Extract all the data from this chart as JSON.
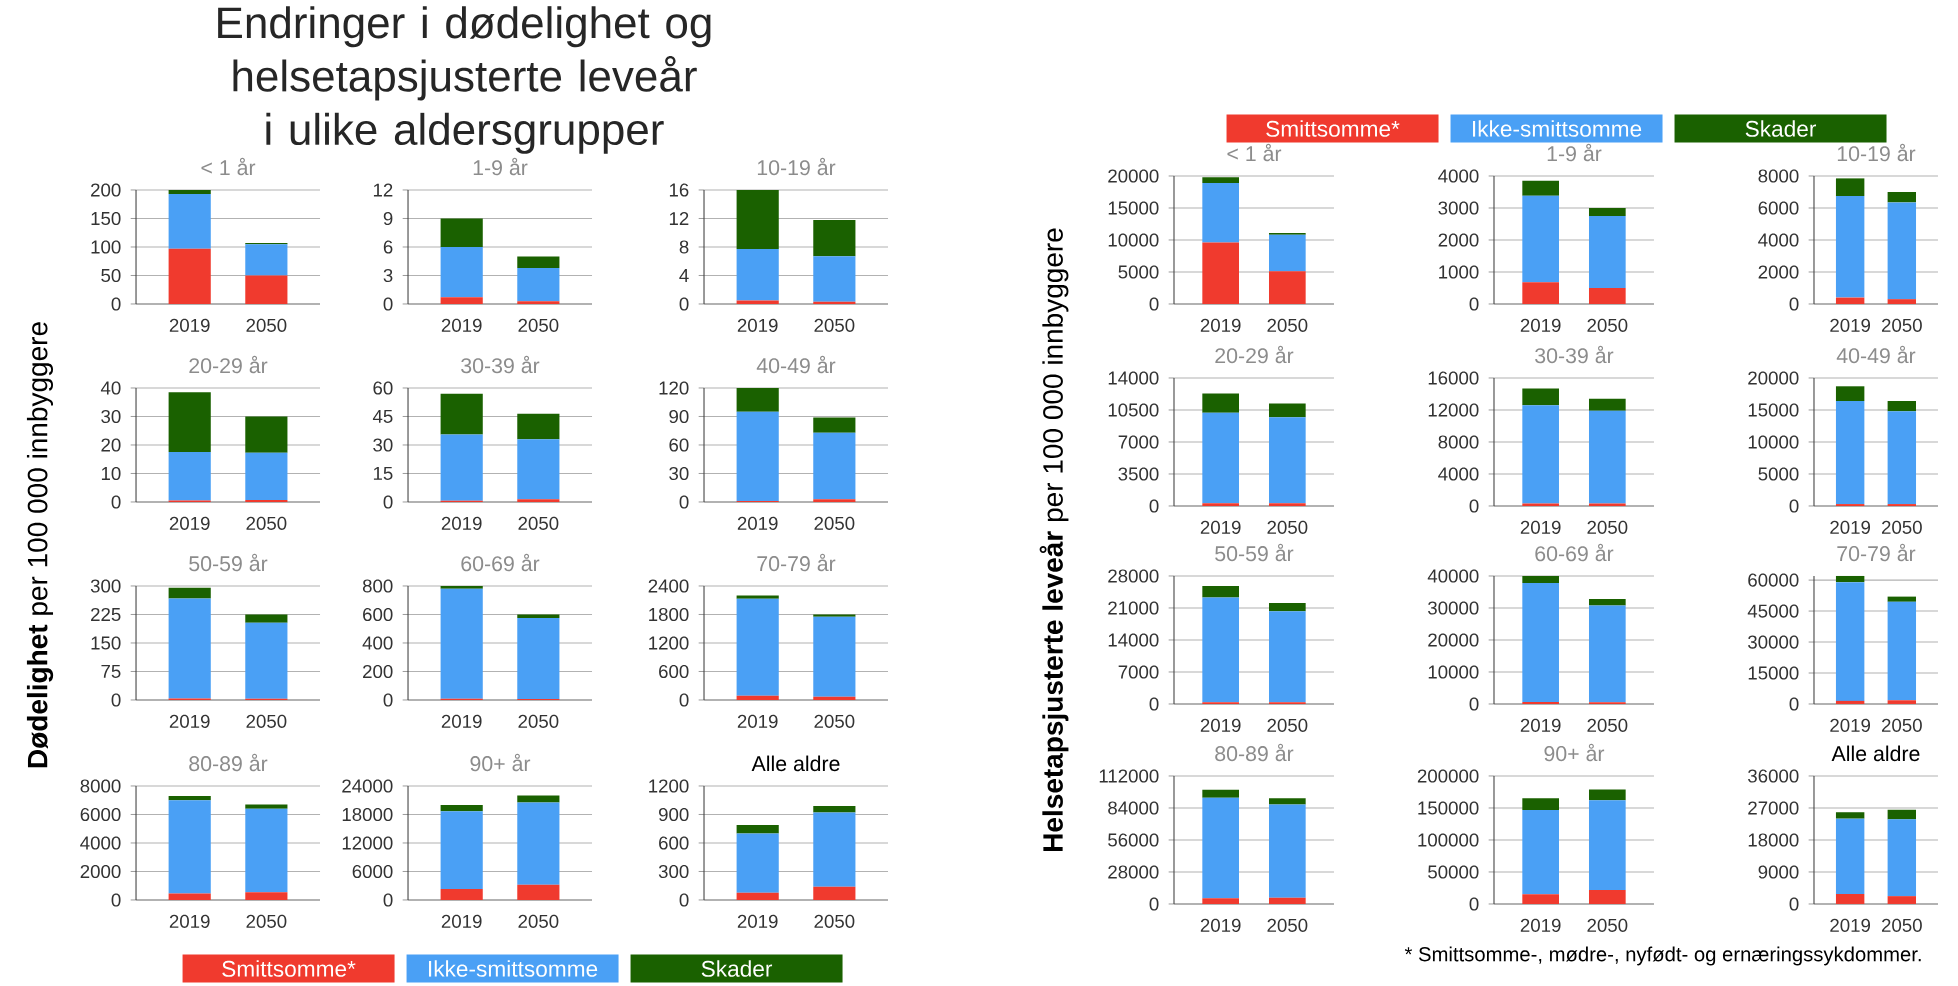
{
  "chart_data": [
    {
      "type": "other",
      "title": "Endringer i dødelighet og helsetapsjusterte leveår i ulike aldersgrupper",
      "annotations": [
        "* Smittsomme-, mødre-, nyfødt- og ernæringssykdommer."
      ]
    },
    {
      "type": "bar",
      "stacked": true,
      "grid": "y",
      "legend": "bottom",
      "ylabel": "**Dødelighet** per 100 000 innbyggere",
      "title": "< 1 år",
      "categories": [
        "2019",
        "2050"
      ],
      "ylim": [
        0,
        200
      ],
      "yticks": [
        0,
        50,
        100,
        150,
        200
      ],
      "series": [
        {
          "name": "Smittsomme*",
          "color": "#f03a2e",
          "values": [
            97,
            50
          ]
        },
        {
          "name": "Ikke-smittsomme",
          "color": "#4aa0f5",
          "values": [
            96,
            55
          ]
        },
        {
          "name": "Skader",
          "color": "#1a6100",
          "values": [
            7,
            2
          ]
        }
      ]
    },
    {
      "type": "bar",
      "stacked": true,
      "grid": "y",
      "title": "1-9 år",
      "categories": [
        "2019",
        "2050"
      ],
      "ylim": [
        0,
        12
      ],
      "yticks": [
        0,
        3,
        6,
        9,
        12
      ],
      "series": [
        {
          "color": "#f03a2e",
          "values": [
            0.7,
            0.3
          ]
        },
        {
          "color": "#4aa0f5",
          "values": [
            5.3,
            3.5
          ]
        },
        {
          "color": "#1a6100",
          "values": [
            3,
            1.2
          ]
        }
      ]
    },
    {
      "type": "bar",
      "stacked": true,
      "grid": "y",
      "title": "10-19 år",
      "categories": [
        "2019",
        "2050"
      ],
      "ylim": [
        0,
        16
      ],
      "yticks": [
        0,
        4,
        8,
        12,
        16
      ],
      "series": [
        {
          "color": "#f03a2e",
          "values": [
            0.5,
            0.3
          ]
        },
        {
          "color": "#4aa0f5",
          "values": [
            7.2,
            6.4
          ]
        },
        {
          "color": "#1a6100",
          "values": [
            8.3,
            5.1
          ]
        }
      ]
    },
    {
      "type": "bar",
      "stacked": true,
      "grid": "y",
      "title": "20-29 år",
      "categories": [
        "2019",
        "2050"
      ],
      "ylim": [
        0,
        40
      ],
      "yticks": [
        0,
        10,
        20,
        30,
        40
      ],
      "series": [
        {
          "color": "#f03a2e",
          "values": [
            0.5,
            0.7
          ]
        },
        {
          "color": "#4aa0f5",
          "values": [
            17,
            16.6
          ]
        },
        {
          "color": "#1a6100",
          "values": [
            21,
            12.7
          ]
        }
      ]
    },
    {
      "type": "bar",
      "stacked": true,
      "grid": "y",
      "title": "30-39 år",
      "categories": [
        "2019",
        "2050"
      ],
      "ylim": [
        0,
        60
      ],
      "yticks": [
        0,
        15,
        30,
        45,
        60
      ],
      "series": [
        {
          "color": "#f03a2e",
          "values": [
            0.7,
            1.5
          ]
        },
        {
          "color": "#4aa0f5",
          "values": [
            34.8,
            31.5
          ]
        },
        {
          "color": "#1a6100",
          "values": [
            21.5,
            13.5
          ]
        }
      ]
    },
    {
      "type": "bar",
      "stacked": true,
      "grid": "y",
      "title": "40-49 år",
      "categories": [
        "2019",
        "2050"
      ],
      "ylim": [
        0,
        120
      ],
      "yticks": [
        0,
        30,
        60,
        90,
        120
      ],
      "series": [
        {
          "color": "#f03a2e",
          "values": [
            1,
            3
          ]
        },
        {
          "color": "#4aa0f5",
          "values": [
            94,
            70
          ]
        },
        {
          "color": "#1a6100",
          "values": [
            25,
            16
          ]
        }
      ]
    },
    {
      "type": "bar",
      "stacked": true,
      "grid": "y",
      "title": "50-59 år",
      "categories": [
        "2019",
        "2050"
      ],
      "ylim": [
        0,
        300
      ],
      "yticks": [
        0,
        75,
        150,
        225,
        300
      ],
      "series": [
        {
          "color": "#f03a2e",
          "values": [
            4,
            3
          ]
        },
        {
          "color": "#4aa0f5",
          "values": [
            263,
            200
          ]
        },
        {
          "color": "#1a6100",
          "values": [
            28,
            22
          ]
        }
      ]
    },
    {
      "type": "bar",
      "stacked": true,
      "grid": "y",
      "title": "60-69 år",
      "categories": [
        "2019",
        "2050"
      ],
      "ylim": [
        0,
        800
      ],
      "yticks": [
        0,
        200,
        400,
        600,
        800
      ],
      "series": [
        {
          "color": "#f03a2e",
          "values": [
            8,
            6
          ]
        },
        {
          "color": "#4aa0f5",
          "values": [
            772,
            569
          ]
        },
        {
          "color": "#1a6100",
          "values": [
            20,
            25
          ]
        }
      ]
    },
    {
      "type": "bar",
      "stacked": true,
      "grid": "y",
      "title": "70-79 år",
      "categories": [
        "2019",
        "2050"
      ],
      "ylim": [
        0,
        2400
      ],
      "yticks": [
        0,
        600,
        1200,
        1800,
        2400
      ],
      "series": [
        {
          "color": "#f03a2e",
          "values": [
            90,
            70
          ]
        },
        {
          "color": "#4aa0f5",
          "values": [
            2040,
            1680
          ]
        },
        {
          "color": "#1a6100",
          "values": [
            70,
            50
          ]
        }
      ]
    },
    {
      "type": "bar",
      "stacked": true,
      "grid": "y",
      "title": "80-89 år",
      "categories": [
        "2019",
        "2050"
      ],
      "ylim": [
        0,
        8000
      ],
      "yticks": [
        0,
        2000,
        4000,
        6000,
        8000
      ],
      "series": [
        {
          "color": "#f03a2e",
          "values": [
            450,
            550
          ]
        },
        {
          "color": "#4aa0f5",
          "values": [
            6550,
            5850
          ]
        },
        {
          "color": "#1a6100",
          "values": [
            300,
            300
          ]
        }
      ]
    },
    {
      "type": "bar",
      "stacked": true,
      "grid": "y",
      "title": "90+ år",
      "categories": [
        "2019",
        "2050"
      ],
      "ylim": [
        0,
        24000
      ],
      "yticks": [
        0,
        6000,
        12000,
        18000,
        24000
      ],
      "series": [
        {
          "color": "#f03a2e",
          "values": [
            2300,
            3200
          ]
        },
        {
          "color": "#4aa0f5",
          "values": [
            16400,
            17300
          ]
        },
        {
          "color": "#1a6100",
          "values": [
            1300,
            1500
          ]
        }
      ]
    },
    {
      "type": "bar",
      "stacked": true,
      "grid": "y",
      "title": "Alle aldre",
      "categories": [
        "2019",
        "2050"
      ],
      "ylim": [
        0,
        1200
      ],
      "yticks": [
        0,
        300,
        600,
        900,
        1200
      ],
      "series": [
        {
          "color": "#f03a2e",
          "values": [
            75,
            140
          ]
        },
        {
          "color": "#4aa0f5",
          "values": [
            625,
            780
          ]
        },
        {
          "color": "#1a6100",
          "values": [
            90,
            70
          ]
        }
      ]
    },
    {
      "type": "bar",
      "stacked": true,
      "grid": "y",
      "legend": "top",
      "ylabel": "**Helsetapsjusterte leveår** per 100 000 innbyggere",
      "title": "< 1 år",
      "categories": [
        "2019",
        "2050"
      ],
      "ylim": [
        0,
        20000
      ],
      "yticks": [
        0,
        5000,
        10000,
        15000,
        20000
      ],
      "series": [
        {
          "name": "Smittsomme*",
          "color": "#f03a2e",
          "values": [
            9600,
            5100
          ]
        },
        {
          "name": "Ikke-smittsomme",
          "color": "#4aa0f5",
          "values": [
            9300,
            5700
          ]
        },
        {
          "name": "Skader",
          "color": "#1a6100",
          "values": [
            900,
            300
          ]
        }
      ]
    },
    {
      "type": "bar",
      "stacked": true,
      "grid": "y",
      "title": "1-9 år",
      "categories": [
        "2019",
        "2050"
      ],
      "ylim": [
        0,
        4000
      ],
      "yticks": [
        0,
        1000,
        2000,
        3000,
        4000
      ],
      "series": [
        {
          "color": "#f03a2e",
          "values": [
            680,
            500
          ]
        },
        {
          "color": "#4aa0f5",
          "values": [
            2700,
            2250
          ]
        },
        {
          "color": "#1a6100",
          "values": [
            470,
            250
          ]
        }
      ]
    },
    {
      "type": "bar",
      "stacked": true,
      "grid": "y",
      "title": "10-19 år",
      "categories": [
        "2019",
        "2050"
      ],
      "ylim": [
        0,
        8000
      ],
      "yticks": [
        0,
        2000,
        4000,
        6000,
        8000
      ],
      "series": [
        {
          "color": "#f03a2e",
          "values": [
            400,
            300
          ]
        },
        {
          "color": "#4aa0f5",
          "values": [
            6350,
            6050
          ]
        },
        {
          "color": "#1a6100",
          "values": [
            1100,
            650
          ]
        }
      ]
    },
    {
      "type": "bar",
      "stacked": true,
      "grid": "y",
      "title": "20-29 år",
      "categories": [
        "2019",
        "2050"
      ],
      "ylim": [
        0,
        14000
      ],
      "yticks": [
        0,
        3500,
        7000,
        10500,
        14000
      ],
      "series": [
        {
          "color": "#f03a2e",
          "values": [
            300,
            300
          ]
        },
        {
          "color": "#4aa0f5",
          "values": [
            9900,
            9400
          ]
        },
        {
          "color": "#1a6100",
          "values": [
            2100,
            1500
          ]
        }
      ]
    },
    {
      "type": "bar",
      "stacked": true,
      "grid": "y",
      "title": "30-39 år",
      "categories": [
        "2019",
        "2050"
      ],
      "ylim": [
        0,
        16000
      ],
      "yticks": [
        0,
        4000,
        8000,
        12000,
        16000
      ],
      "series": [
        {
          "color": "#f03a2e",
          "values": [
            300,
            300
          ]
        },
        {
          "color": "#4aa0f5",
          "values": [
            12300,
            11600
          ]
        },
        {
          "color": "#1a6100",
          "values": [
            2100,
            1500
          ]
        }
      ]
    },
    {
      "type": "bar",
      "stacked": true,
      "grid": "y",
      "title": "40-49 år",
      "categories": [
        "2019",
        "2050"
      ],
      "ylim": [
        0,
        20000
      ],
      "yticks": [
        0,
        5000,
        10000,
        15000,
        20000
      ],
      "series": [
        {
          "color": "#f03a2e",
          "values": [
            300,
            300
          ]
        },
        {
          "color": "#4aa0f5",
          "values": [
            16100,
            14500
          ]
        },
        {
          "color": "#1a6100",
          "values": [
            2300,
            1600
          ]
        }
      ]
    },
    {
      "type": "bar",
      "stacked": true,
      "grid": "y",
      "title": "50-59 år",
      "categories": [
        "2019",
        "2050"
      ],
      "ylim": [
        0,
        28000
      ],
      "yticks": [
        0,
        7000,
        14000,
        21000,
        28000
      ],
      "series": [
        {
          "color": "#f03a2e",
          "values": [
            400,
            400
          ]
        },
        {
          "color": "#4aa0f5",
          "values": [
            22900,
            19900
          ]
        },
        {
          "color": "#1a6100",
          "values": [
            2500,
            1800
          ]
        }
      ]
    },
    {
      "type": "bar",
      "stacked": true,
      "grid": "y",
      "title": "60-69 år",
      "categories": [
        "2019",
        "2050"
      ],
      "ylim": [
        0,
        40000
      ],
      "yticks": [
        0,
        10000,
        20000,
        30000,
        40000
      ],
      "series": [
        {
          "color": "#f03a2e",
          "values": [
            600,
            500
          ]
        },
        {
          "color": "#4aa0f5",
          "values": [
            37200,
            30300
          ]
        },
        {
          "color": "#1a6100",
          "values": [
            2200,
            2000
          ]
        }
      ]
    },
    {
      "type": "bar",
      "stacked": true,
      "grid": "y",
      "title": "70-79 år",
      "categories": [
        "2019",
        "2050"
      ],
      "ylim": [
        0,
        62000
      ],
      "yticks": [
        0,
        15000,
        30000,
        45000,
        60000
      ],
      "series": [
        {
          "color": "#f03a2e",
          "values": [
            1500,
            1800
          ]
        },
        {
          "color": "#4aa0f5",
          "values": [
            57500,
            47700
          ]
        },
        {
          "color": "#1a6100",
          "values": [
            3000,
            2500
          ]
        }
      ]
    },
    {
      "type": "bar",
      "stacked": true,
      "grid": "y",
      "title": "80-89 år",
      "categories": [
        "2019",
        "2050"
      ],
      "ylim": [
        0,
        112000
      ],
      "yticks": [
        0,
        28000,
        56000,
        84000,
        112000
      ],
      "series": [
        {
          "color": "#f03a2e",
          "values": [
            5000,
            5500
          ]
        },
        {
          "color": "#4aa0f5",
          "values": [
            88000,
            81500
          ]
        },
        {
          "color": "#1a6100",
          "values": [
            7000,
            5500
          ]
        }
      ]
    },
    {
      "type": "bar",
      "stacked": true,
      "grid": "y",
      "title": "90+ år",
      "categories": [
        "2019",
        "2050"
      ],
      "ylim": [
        0,
        200000
      ],
      "yticks": [
        0,
        50000,
        100000,
        150000,
        200000
      ],
      "series": [
        {
          "color": "#f03a2e",
          "values": [
            15000,
            22000
          ]
        },
        {
          "color": "#4aa0f5",
          "values": [
            132000,
            140000
          ]
        },
        {
          "color": "#1a6100",
          "values": [
            18000,
            17000
          ]
        }
      ]
    },
    {
      "type": "bar",
      "stacked": true,
      "grid": "y",
      "title": "Alle aldre",
      "categories": [
        "2019",
        "2050"
      ],
      "ylim": [
        0,
        36000
      ],
      "yticks": [
        0,
        9000,
        18000,
        27000,
        36000
      ],
      "series": [
        {
          "color": "#f03a2e",
          "values": [
            2800,
            2200
          ]
        },
        {
          "color": "#4aa0f5",
          "values": [
            21200,
            21600
          ]
        },
        {
          "color": "#1a6100",
          "values": [
            1800,
            2700
          ]
        }
      ]
    }
  ]
}
